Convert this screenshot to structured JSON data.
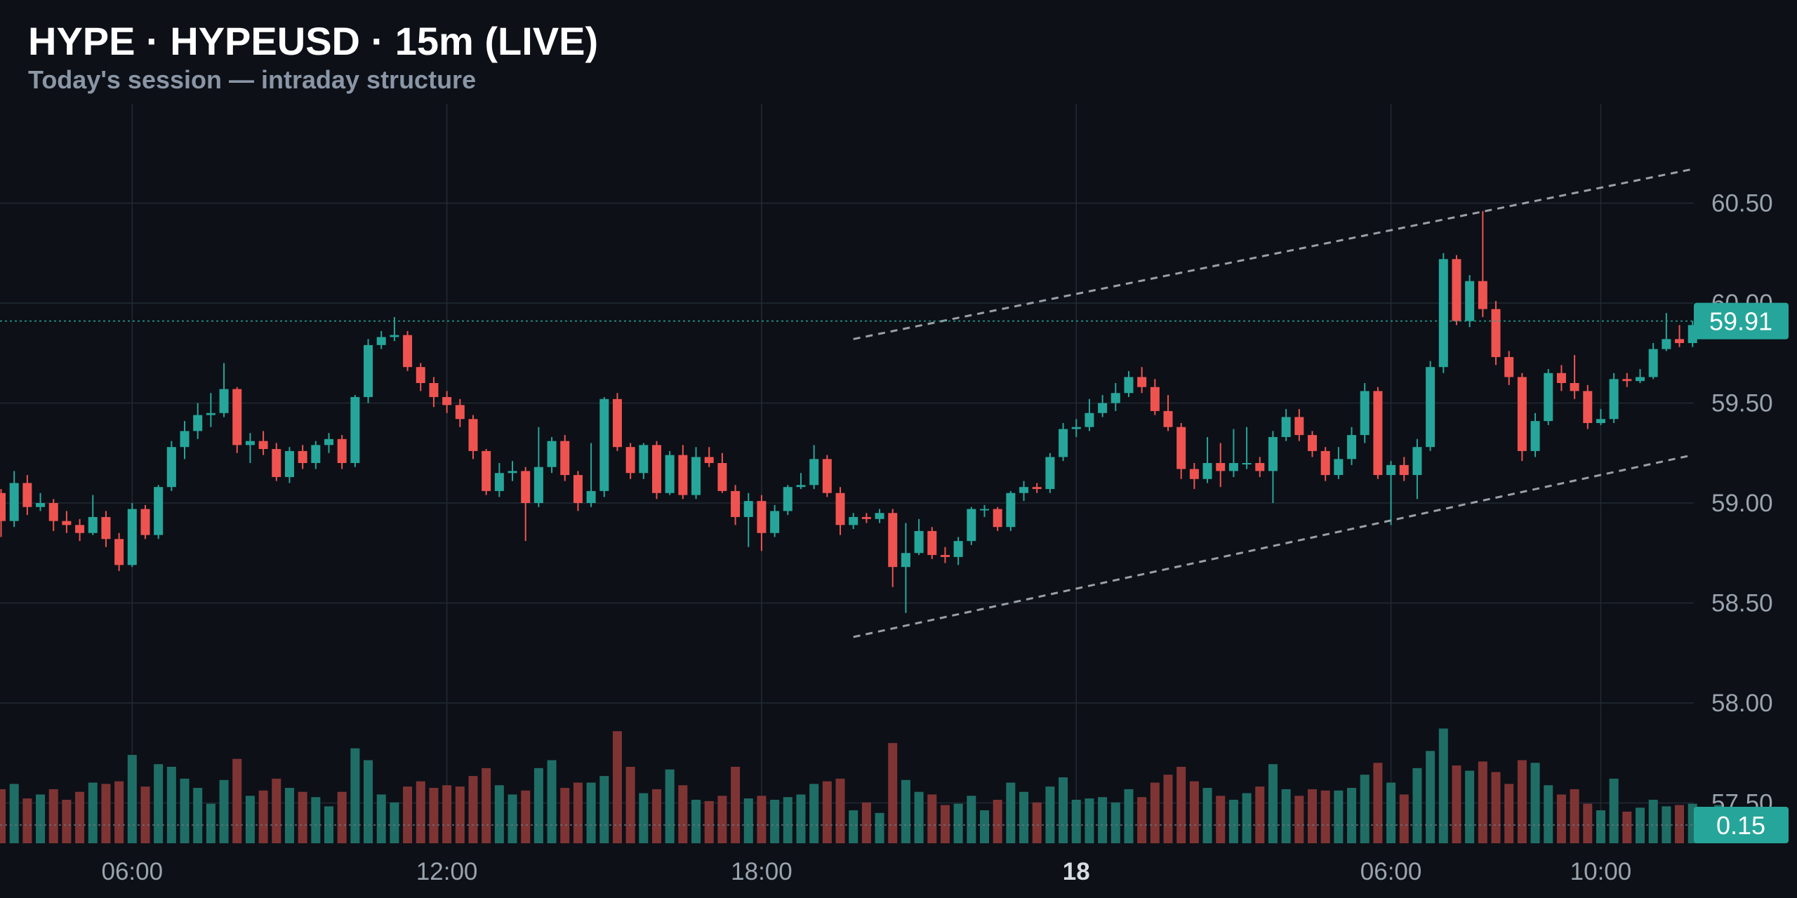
{
  "header": {
    "title": "HYPE · HYPEUSD · 15m (LIVE)",
    "subtitle": "Today's session — intraday structure"
  },
  "colors": {
    "background": "#0d1017",
    "grid": "#222a33",
    "up": "#26a69a",
    "down": "#ef5350",
    "up_volume": "#1f6e66",
    "down_volume": "#7f3434",
    "axis_text": "#9aa4ae",
    "title": "#ffffff",
    "subtitle": "#8a96a6",
    "channel": "#9aa0a6",
    "badge": "#26a69a"
  },
  "chart_data": {
    "type": "candlestick",
    "title": "HYPE · HYPEUSD · 15m (LIVE)",
    "subtitle": "Today's session — intraday structure",
    "ylim": [
      57.25,
      61.0
    ],
    "price_ticks": [
      "57.50",
      "58.00",
      "58.50",
      "59.00",
      "59.50",
      "60.00",
      "60.50"
    ],
    "time_ticks": [
      {
        "label": "06:00",
        "index": 10,
        "bold": false
      },
      {
        "label": "12:00",
        "index": 34,
        "bold": false
      },
      {
        "label": "18:00",
        "index": 58,
        "bold": false
      },
      {
        "label": "18",
        "index": 82,
        "bold": true
      },
      {
        "label": "06:00",
        "index": 106,
        "bold": false
      },
      {
        "label": "10:00",
        "index": 122,
        "bold": false
      }
    ],
    "last_price": {
      "value": 59.91,
      "label": "59.91"
    },
    "volume_badge": {
      "label": "0.15"
    },
    "volume_max": 1.0,
    "channel": {
      "upper": [
        {
          "index": 65,
          "price": 59.82
        },
        {
          "index": 129,
          "price": 60.67
        }
      ],
      "lower": [
        {
          "index": 65,
          "price": 58.33
        },
        {
          "index": 129,
          "price": 59.24
        }
      ]
    },
    "candles": [
      [
        59.05,
        58.91,
        59.07,
        58.83,
        0.41
      ],
      [
        58.91,
        59.1,
        59.16,
        58.88,
        0.45
      ],
      [
        59.1,
        58.98,
        59.14,
        58.94,
        0.34
      ],
      [
        58.98,
        59.0,
        59.05,
        58.96,
        0.37
      ],
      [
        59.0,
        58.91,
        59.02,
        58.86,
        0.41
      ],
      [
        58.91,
        58.89,
        58.96,
        58.85,
        0.33
      ],
      [
        58.89,
        58.85,
        58.92,
        58.81,
        0.39
      ],
      [
        58.85,
        58.93,
        59.04,
        58.84,
        0.46
      ],
      [
        58.93,
        58.82,
        58.96,
        58.78,
        0.45
      ],
      [
        58.82,
        58.69,
        58.85,
        58.66,
        0.47
      ],
      [
        58.69,
        58.97,
        59.0,
        58.68,
        0.67
      ],
      [
        58.97,
        58.84,
        58.99,
        58.82,
        0.43
      ],
      [
        58.84,
        59.08,
        59.09,
        58.82,
        0.6
      ],
      [
        59.08,
        59.28,
        59.31,
        59.06,
        0.58
      ],
      [
        59.28,
        59.36,
        59.41,
        59.22,
        0.49
      ],
      [
        59.36,
        59.44,
        59.5,
        59.32,
        0.42
      ],
      [
        59.44,
        59.45,
        59.55,
        59.38,
        0.3
      ],
      [
        59.45,
        59.57,
        59.7,
        59.43,
        0.48
      ],
      [
        59.57,
        59.29,
        59.58,
        59.25,
        0.64
      ],
      [
        59.29,
        59.31,
        59.35,
        59.2,
        0.36
      ],
      [
        59.31,
        59.27,
        59.36,
        59.24,
        0.4
      ],
      [
        59.27,
        59.13,
        59.3,
        59.11,
        0.49
      ],
      [
        59.13,
        59.26,
        59.28,
        59.1,
        0.42
      ],
      [
        59.26,
        59.2,
        59.29,
        59.17,
        0.39
      ],
      [
        59.2,
        59.29,
        59.31,
        59.17,
        0.35
      ],
      [
        59.29,
        59.32,
        59.35,
        59.25,
        0.28
      ],
      [
        59.32,
        59.2,
        59.34,
        59.17,
        0.39
      ],
      [
        59.2,
        59.53,
        59.54,
        59.18,
        0.72
      ],
      [
        59.53,
        59.79,
        59.82,
        59.5,
        0.63
      ],
      [
        59.79,
        59.83,
        59.86,
        59.77,
        0.37
      ],
      [
        59.83,
        59.84,
        59.93,
        59.81,
        0.31
      ],
      [
        59.84,
        59.68,
        59.86,
        59.66,
        0.43
      ],
      [
        59.68,
        59.6,
        59.7,
        59.56,
        0.47
      ],
      [
        59.6,
        59.53,
        59.63,
        59.48,
        0.42
      ],
      [
        59.53,
        59.49,
        59.56,
        59.45,
        0.44
      ],
      [
        59.49,
        59.42,
        59.52,
        59.38,
        0.43
      ],
      [
        59.42,
        59.26,
        59.44,
        59.22,
        0.51
      ],
      [
        59.26,
        59.06,
        59.27,
        59.04,
        0.57
      ],
      [
        59.06,
        59.15,
        59.2,
        59.03,
        0.44
      ],
      [
        59.15,
        59.16,
        59.21,
        59.11,
        0.37
      ],
      [
        59.16,
        59.0,
        59.18,
        58.81,
        0.4
      ],
      [
        59.0,
        59.18,
        59.38,
        58.98,
        0.57
      ],
      [
        59.18,
        59.31,
        59.33,
        59.15,
        0.63
      ],
      [
        59.31,
        59.14,
        59.34,
        59.11,
        0.42
      ],
      [
        59.14,
        59.0,
        59.16,
        58.96,
        0.46
      ],
      [
        59.0,
        59.06,
        59.3,
        58.98,
        0.46
      ],
      [
        59.06,
        59.52,
        59.53,
        59.03,
        0.51
      ],
      [
        59.52,
        59.28,
        59.55,
        59.26,
        0.85
      ],
      [
        59.28,
        59.15,
        59.3,
        59.12,
        0.58
      ],
      [
        59.15,
        59.29,
        59.3,
        59.12,
        0.38
      ],
      [
        59.29,
        59.05,
        59.31,
        59.02,
        0.41
      ],
      [
        59.05,
        59.24,
        59.26,
        59.04,
        0.56
      ],
      [
        59.24,
        59.04,
        59.29,
        59.02,
        0.44
      ],
      [
        59.04,
        59.23,
        59.28,
        59.02,
        0.33
      ],
      [
        59.23,
        59.2,
        59.28,
        59.18,
        0.32
      ],
      [
        59.2,
        59.06,
        59.25,
        59.05,
        0.36
      ],
      [
        59.06,
        58.93,
        59.09,
        58.89,
        0.58
      ],
      [
        58.93,
        59.01,
        59.05,
        58.78,
        0.34
      ],
      [
        59.01,
        58.85,
        59.04,
        58.76,
        0.36
      ],
      [
        58.85,
        58.96,
        58.99,
        58.83,
        0.33
      ],
      [
        58.96,
        59.08,
        59.09,
        58.94,
        0.35
      ],
      [
        59.08,
        59.09,
        59.15,
        59.07,
        0.37
      ],
      [
        59.09,
        59.22,
        59.29,
        59.07,
        0.45
      ],
      [
        59.22,
        59.05,
        59.24,
        59.03,
        0.47
      ],
      [
        59.05,
        58.89,
        59.08,
        58.84,
        0.49
      ],
      [
        58.89,
        58.93,
        58.95,
        58.87,
        0.25
      ],
      [
        58.93,
        58.92,
        58.95,
        58.9,
        0.31
      ],
      [
        58.92,
        58.95,
        58.97,
        58.9,
        0.23
      ],
      [
        58.95,
        58.68,
        58.97,
        58.58,
        0.76
      ],
      [
        58.68,
        58.75,
        58.9,
        58.45,
        0.48
      ],
      [
        58.75,
        58.86,
        58.92,
        58.74,
        0.39
      ],
      [
        58.86,
        58.74,
        58.88,
        58.72,
        0.37
      ],
      [
        58.74,
        58.73,
        58.78,
        58.7,
        0.29
      ],
      [
        58.73,
        58.81,
        58.83,
        58.69,
        0.3
      ],
      [
        58.81,
        58.97,
        58.98,
        58.79,
        0.36
      ],
      [
        58.97,
        58.97,
        58.99,
        58.93,
        0.25
      ],
      [
        58.97,
        58.88,
        58.98,
        58.86,
        0.33
      ],
      [
        58.88,
        59.05,
        59.06,
        58.86,
        0.46
      ],
      [
        59.05,
        59.08,
        59.11,
        59.01,
        0.39
      ],
      [
        59.08,
        59.07,
        59.1,
        59.05,
        0.31
      ],
      [
        59.07,
        59.23,
        59.25,
        59.05,
        0.43
      ],
      [
        59.23,
        59.37,
        59.4,
        59.21,
        0.5
      ],
      [
        59.37,
        59.38,
        59.42,
        59.33,
        0.33
      ],
      [
        59.38,
        59.45,
        59.52,
        59.36,
        0.34
      ],
      [
        59.45,
        59.5,
        59.54,
        59.43,
        0.35
      ],
      [
        59.5,
        59.55,
        59.6,
        59.46,
        0.31
      ],
      [
        59.55,
        59.63,
        59.66,
        59.53,
        0.41
      ],
      [
        59.63,
        59.58,
        59.68,
        59.55,
        0.35
      ],
      [
        59.58,
        59.46,
        59.62,
        59.44,
        0.46
      ],
      [
        59.46,
        59.38,
        59.54,
        59.36,
        0.52
      ],
      [
        59.38,
        59.17,
        59.4,
        59.12,
        0.58
      ],
      [
        59.17,
        59.12,
        59.2,
        59.07,
        0.47
      ],
      [
        59.12,
        59.2,
        59.33,
        59.1,
        0.42
      ],
      [
        59.2,
        59.16,
        59.3,
        59.08,
        0.36
      ],
      [
        59.16,
        59.2,
        59.37,
        59.13,
        0.33
      ],
      [
        59.2,
        59.2,
        59.38,
        59.17,
        0.38
      ],
      [
        59.2,
        59.16,
        59.23,
        59.13,
        0.43
      ],
      [
        59.16,
        59.33,
        59.36,
        59.0,
        0.6
      ],
      [
        59.33,
        59.43,
        59.47,
        59.31,
        0.41
      ],
      [
        59.43,
        59.34,
        59.47,
        59.31,
        0.36
      ],
      [
        59.34,
        59.26,
        59.36,
        59.23,
        0.41
      ],
      [
        59.26,
        59.14,
        59.28,
        59.11,
        0.4
      ],
      [
        59.14,
        59.22,
        59.28,
        59.12,
        0.4
      ],
      [
        59.22,
        59.34,
        59.38,
        59.19,
        0.42
      ],
      [
        59.34,
        59.56,
        59.6,
        59.3,
        0.52
      ],
      [
        59.56,
        59.14,
        59.58,
        59.12,
        0.61
      ],
      [
        59.14,
        59.19,
        59.21,
        58.89,
        0.46
      ],
      [
        59.19,
        59.14,
        59.23,
        59.11,
        0.37
      ],
      [
        59.14,
        59.28,
        59.32,
        59.02,
        0.57
      ],
      [
        59.28,
        59.68,
        59.71,
        59.26,
        0.7
      ],
      [
        59.68,
        60.22,
        60.25,
        59.65,
        0.87
      ],
      [
        60.22,
        59.91,
        60.24,
        59.89,
        0.59
      ],
      [
        59.91,
        60.11,
        60.14,
        59.88,
        0.55
      ],
      [
        60.11,
        59.97,
        60.46,
        59.93,
        0.62
      ],
      [
        59.97,
        59.73,
        60.01,
        59.69,
        0.54
      ],
      [
        59.73,
        59.63,
        59.76,
        59.59,
        0.45
      ],
      [
        59.63,
        59.26,
        59.65,
        59.21,
        0.63
      ],
      [
        59.26,
        59.41,
        59.45,
        59.23,
        0.61
      ],
      [
        59.41,
        59.65,
        59.67,
        59.39,
        0.44
      ],
      [
        59.65,
        59.6,
        59.69,
        59.56,
        0.37
      ],
      [
        59.6,
        59.56,
        59.74,
        59.52,
        0.41
      ],
      [
        59.56,
        59.4,
        59.59,
        59.37,
        0.3
      ],
      [
        59.4,
        59.42,
        59.47,
        59.39,
        0.25
      ],
      [
        59.42,
        59.62,
        59.65,
        59.4,
        0.49
      ],
      [
        59.62,
        59.61,
        59.65,
        59.58,
        0.24
      ],
      [
        59.61,
        59.63,
        59.67,
        59.6,
        0.27
      ],
      [
        59.63,
        59.77,
        59.8,
        59.62,
        0.33
      ],
      [
        59.77,
        59.82,
        59.95,
        59.76,
        0.28
      ],
      [
        59.82,
        59.8,
        59.89,
        59.78,
        0.29
      ],
      [
        59.8,
        59.89,
        59.91,
        59.78,
        0.3
      ],
      [
        59.89,
        59.86,
        59.99,
        59.84,
        0.26
      ],
      [
        59.86,
        59.91,
        59.93,
        59.83,
        0.29
      ]
    ]
  }
}
